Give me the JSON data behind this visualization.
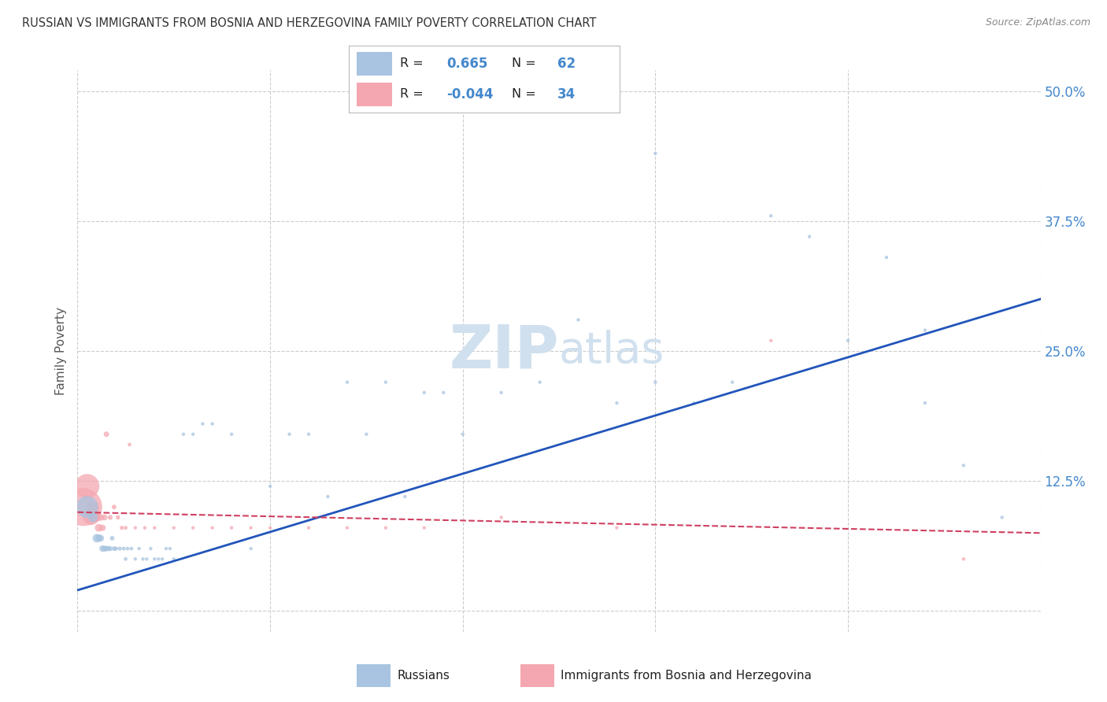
{
  "title": "RUSSIAN VS IMMIGRANTS FROM BOSNIA AND HERZEGOVINA FAMILY POVERTY CORRELATION CHART",
  "source": "Source: ZipAtlas.com",
  "ylabel": "Family Poverty",
  "yticks": [
    0.0,
    0.125,
    0.25,
    0.375,
    0.5
  ],
  "ytick_labels": [
    "",
    "12.5%",
    "25.0%",
    "37.5%",
    "50.0%"
  ],
  "xlim": [
    0.0,
    0.5
  ],
  "ylim": [
    -0.02,
    0.52
  ],
  "blue_color": "#a8c4e0",
  "pink_color": "#f4a7b0",
  "line_blue": "#2255bb",
  "line_pink": "#d04060",
  "title_color": "#404040",
  "right_label_color": "#4488cc",
  "bottom_label_color": "#4488cc",
  "watermark_color": "#d0e0ee",
  "russians_x": [
    0.005,
    0.008,
    0.01,
    0.011,
    0.012,
    0.013,
    0.014,
    0.015,
    0.016,
    0.017,
    0.018,
    0.019,
    0.02,
    0.022,
    0.024,
    0.025,
    0.026,
    0.028,
    0.03,
    0.032,
    0.034,
    0.036,
    0.038,
    0.04,
    0.042,
    0.044,
    0.046,
    0.048,
    0.05,
    0.055,
    0.06,
    0.065,
    0.07,
    0.08,
    0.09,
    0.1,
    0.11,
    0.12,
    0.13,
    0.14,
    0.15,
    0.16,
    0.17,
    0.18,
    0.19,
    0.2,
    0.22,
    0.24,
    0.26,
    0.28,
    0.3,
    0.32,
    0.34,
    0.36,
    0.38,
    0.4,
    0.42,
    0.44,
    0.46,
    0.48,
    0.3,
    0.44
  ],
  "russians_y": [
    0.1,
    0.09,
    0.07,
    0.07,
    0.07,
    0.06,
    0.06,
    0.06,
    0.06,
    0.06,
    0.07,
    0.06,
    0.06,
    0.06,
    0.06,
    0.05,
    0.06,
    0.06,
    0.05,
    0.06,
    0.05,
    0.05,
    0.06,
    0.05,
    0.05,
    0.05,
    0.06,
    0.06,
    0.05,
    0.17,
    0.17,
    0.18,
    0.18,
    0.17,
    0.06,
    0.12,
    0.17,
    0.17,
    0.11,
    0.22,
    0.17,
    0.22,
    0.11,
    0.21,
    0.21,
    0.17,
    0.21,
    0.22,
    0.28,
    0.2,
    0.44,
    0.2,
    0.22,
    0.38,
    0.36,
    0.26,
    0.34,
    0.27,
    0.14,
    0.09,
    0.22,
    0.2
  ],
  "russians_size": [
    400,
    80,
    60,
    45,
    40,
    35,
    30,
    25,
    22,
    20,
    18,
    17,
    15,
    14,
    13,
    12,
    12,
    11,
    10,
    10,
    10,
    10,
    10,
    10,
    10,
    10,
    10,
    10,
    10,
    10,
    10,
    10,
    10,
    10,
    10,
    10,
    10,
    10,
    10,
    10,
    10,
    10,
    10,
    10,
    10,
    10,
    10,
    10,
    10,
    10,
    10,
    10,
    10,
    10,
    10,
    10,
    10,
    10,
    10,
    10,
    10,
    10
  ],
  "bosnia_x": [
    0.003,
    0.005,
    0.007,
    0.008,
    0.009,
    0.01,
    0.011,
    0.012,
    0.013,
    0.014,
    0.015,
    0.017,
    0.019,
    0.021,
    0.023,
    0.025,
    0.027,
    0.03,
    0.035,
    0.04,
    0.05,
    0.06,
    0.07,
    0.08,
    0.09,
    0.1,
    0.12,
    0.14,
    0.16,
    0.18,
    0.22,
    0.28,
    0.36,
    0.46
  ],
  "bosnia_y": [
    0.1,
    0.12,
    0.09,
    0.1,
    0.09,
    0.09,
    0.08,
    0.09,
    0.08,
    0.09,
    0.17,
    0.09,
    0.1,
    0.09,
    0.08,
    0.08,
    0.16,
    0.08,
    0.08,
    0.08,
    0.08,
    0.08,
    0.08,
    0.08,
    0.08,
    0.08,
    0.08,
    0.08,
    0.08,
    0.08,
    0.09,
    0.08,
    0.26,
    0.05
  ],
  "bosnia_size": [
    1200,
    500,
    200,
    120,
    80,
    60,
    50,
    40,
    35,
    30,
    25,
    20,
    18,
    16,
    14,
    12,
    11,
    10,
    10,
    10,
    10,
    10,
    10,
    10,
    10,
    10,
    10,
    10,
    10,
    10,
    10,
    10,
    10,
    10
  ],
  "blue_line_x0": 0.0,
  "blue_line_y0": 0.02,
  "blue_line_x1": 0.5,
  "blue_line_y1": 0.3,
  "pink_line_x0": 0.0,
  "pink_line_y0": 0.095,
  "pink_line_x1": 0.5,
  "pink_line_y1": 0.075
}
